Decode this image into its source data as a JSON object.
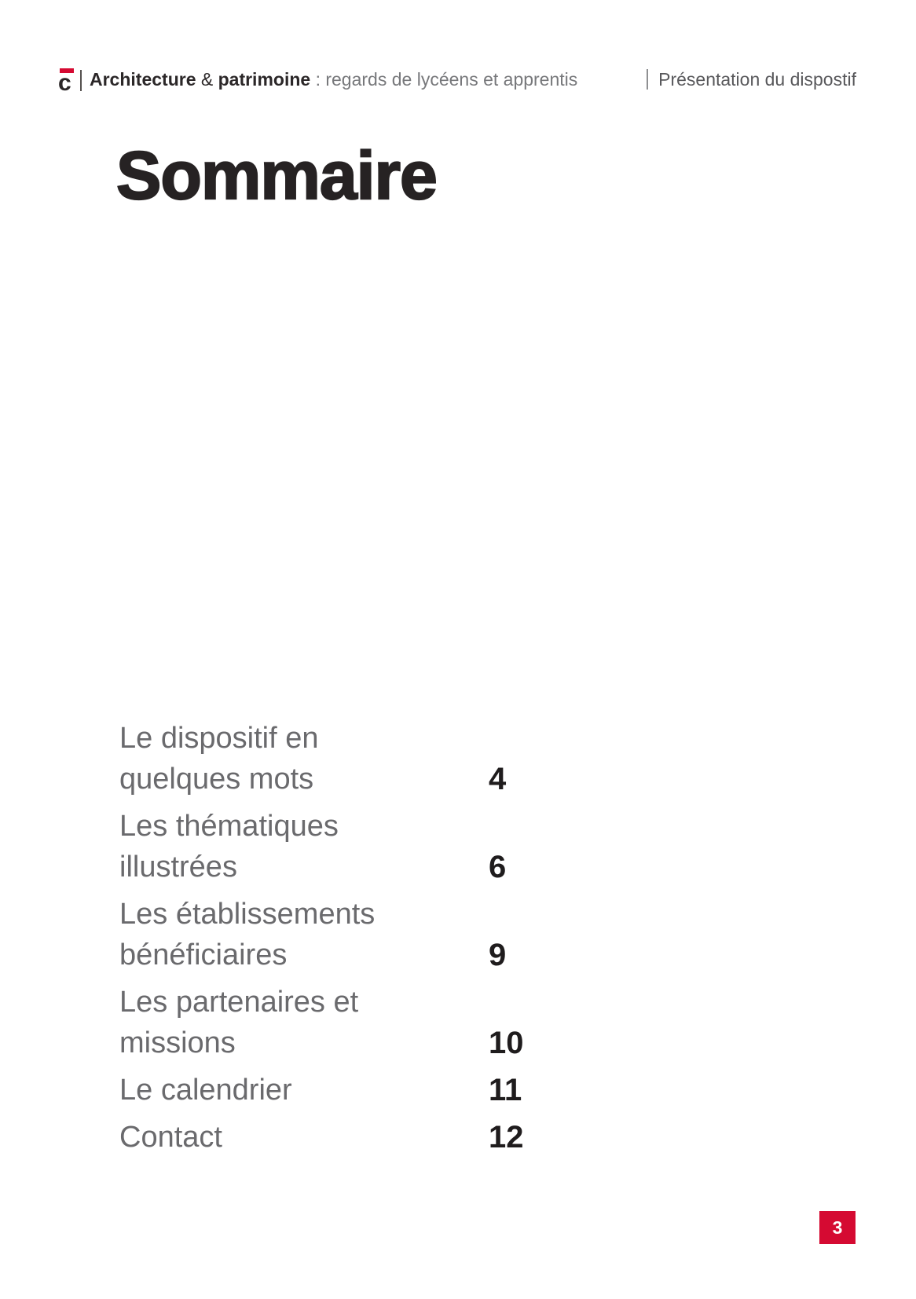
{
  "header": {
    "logo": {
      "letter": "c"
    },
    "brand": {
      "word1": "Architecture",
      "amp": "&",
      "word2": "patrimoine",
      "separator": ":",
      "subtitle": "regards de lycéens et apprentis"
    },
    "section_label": "Présentation du dispostif"
  },
  "page_title": "Sommaire",
  "toc": {
    "entries": [
      {
        "line1": "Le dispositif en",
        "line2": "quelques mots",
        "page": "4"
      },
      {
        "line1": "Les thématiques",
        "line2": "illustrées",
        "page": "6"
      },
      {
        "line1": "Les établissements",
        "line2": "bénéficiaires",
        "page": "9"
      },
      {
        "line1": "Les partenaires et",
        "line2": "missions",
        "page": "10"
      },
      {
        "line1": "Le calendrier",
        "line2": "",
        "page": "11"
      },
      {
        "line1": "Contact",
        "line2": "",
        "page": "12"
      }
    ]
  },
  "footer": {
    "page_number": "3"
  },
  "colors": {
    "accent_red": "#d50a32",
    "text_dark": "#262223",
    "text_gray": "#6a6a6d"
  }
}
